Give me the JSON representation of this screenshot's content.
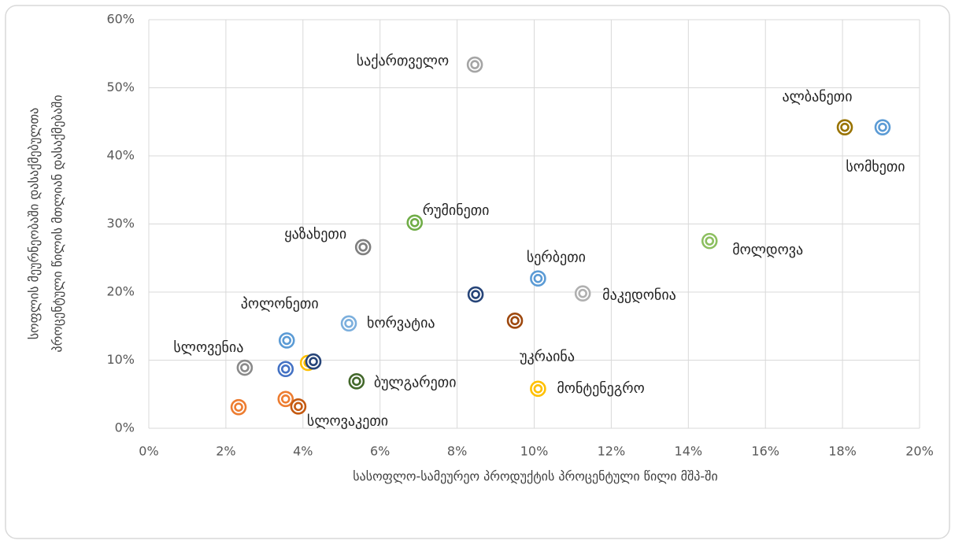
{
  "chart_data": {
    "type": "scatter",
    "xlabel": "სასოფლო-სამეურეო პროდუქტის პროცენტული წილი მშპ-ში",
    "ylabel": [
      "სოფლის მეურნეობაში დასაქმებულთა",
      "პროცენტული წილის მთლიან დასაქმებაში"
    ],
    "x": [
      8.46,
      18.06,
      19.04,
      6.9,
      5.56,
      14.55,
      10.1,
      8.48,
      11.26,
      5.19,
      9.5,
      3.58,
      2.49,
      3.55,
      4.13,
      4.27,
      5.39,
      10.1,
      2.33,
      3.55,
      3.88
    ],
    "y": [
      53.4,
      44.2,
      44.2,
      30.2,
      26.6,
      27.5,
      22.0,
      19.65,
      19.8,
      15.4,
      15.8,
      12.9,
      8.9,
      8.7,
      9.6,
      9.8,
      6.9,
      5.8,
      3.1,
      4.3,
      3.2
    ],
    "labels": [
      "საქართველო",
      "ალბანეთი",
      "სომხეთი",
      "რუმინეთი",
      "ყაზახეთი",
      "მოლდოვა",
      "სერბეთი",
      null,
      "მაკედონია",
      "ხორვატია",
      "უკრაინა",
      "პოლონეთი",
      "სლოვენია",
      null,
      null,
      null,
      "ბულგარეთი",
      "მონტენეგრო",
      null,
      null,
      "სლოვაკეთი"
    ],
    "colors": [
      "#a5a5a5",
      "#997300",
      "#5b9bd5",
      "#70ad47",
      "#7f7f7f",
      "#8cbf5f",
      "#5b9bd5",
      "#264478",
      "#b0b0b0",
      "#7cafdd",
      "#9e480e",
      "#5b9bd5",
      "#8a8a8a",
      "#4472c4",
      "#ffc000",
      "#264478",
      "#43682b",
      "#ffc000",
      "#ed7d31",
      "#ed7d31",
      "#c55a11"
    ],
    "xlim": [
      0,
      20
    ],
    "xticks": [
      {
        "value": 0,
        "label": "0%"
      },
      {
        "value": 2,
        "label": "2%"
      },
      {
        "value": 4,
        "label": "4%"
      },
      {
        "value": 6,
        "label": "6%"
      },
      {
        "value": 8,
        "label": "8%"
      },
      {
        "value": 10,
        "label": "10%"
      },
      {
        "value": 12,
        "label": "12%"
      },
      {
        "value": 14,
        "label": "14%"
      },
      {
        "value": 16,
        "label": "16%"
      },
      {
        "value": 18,
        "label": "18%"
      },
      {
        "value": 20,
        "label": "20%"
      }
    ],
    "ylim": [
      0,
      60
    ],
    "yticks": [
      {
        "value": 0,
        "label": "0%"
      },
      {
        "value": 10,
        "label": "10%"
      },
      {
        "value": 20,
        "label": "20%"
      },
      {
        "value": 30,
        "label": "30%"
      },
      {
        "value": 40,
        "label": "40%"
      },
      {
        "value": 50,
        "label": "50%"
      },
      {
        "value": 60,
        "label": "60%"
      }
    ],
    "grid": true
  }
}
